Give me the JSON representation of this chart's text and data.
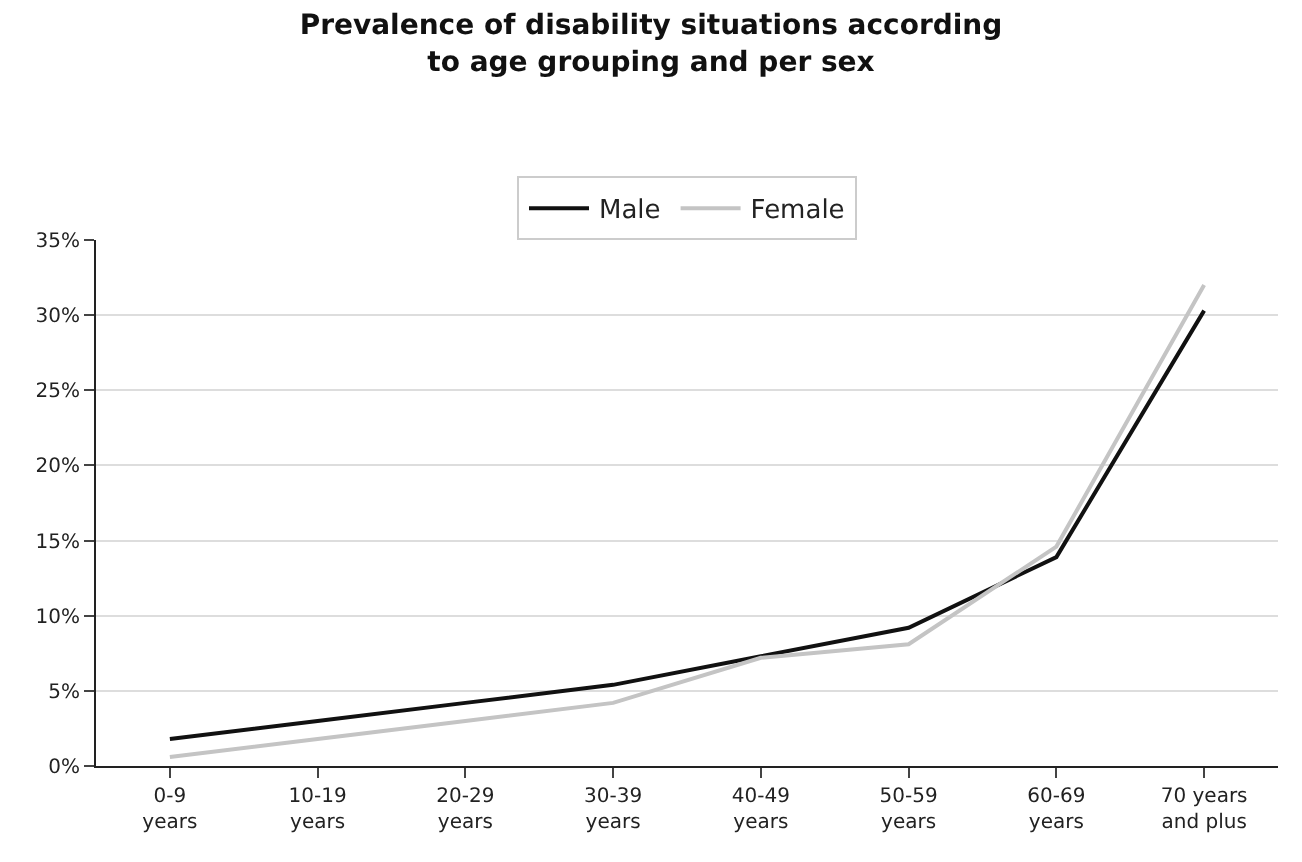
{
  "chart_data": {
    "type": "line",
    "title": "Prevalence of disability situations according\nto age grouping and per sex",
    "categories": [
      "0-9\nyears",
      "10-19\nyears",
      "20-29\nyears",
      "30-39\nyears",
      "40-49\nyears",
      "50-59\nyears",
      "60-69\nyears",
      "70 years\nand plus"
    ],
    "series": [
      {
        "name": "Male",
        "color": "#111111",
        "values": [
          1.8,
          3.0,
          4.2,
          5.4,
          7.3,
          9.2,
          13.9,
          30.3
        ]
      },
      {
        "name": "Female",
        "color": "#c4c4c4",
        "values": [
          0.6,
          1.8,
          3.0,
          4.2,
          7.2,
          8.1,
          14.6,
          32.0
        ]
      }
    ],
    "ylim": [
      0,
      35
    ],
    "yticks": [
      {
        "value": 0,
        "label": "0%"
      },
      {
        "value": 5,
        "label": "5%"
      },
      {
        "value": 10,
        "label": "10%"
      },
      {
        "value": 15,
        "label": "15%"
      },
      {
        "value": 20,
        "label": "20%"
      },
      {
        "value": 25,
        "label": "25%"
      },
      {
        "value": 30,
        "label": "30%"
      },
      {
        "value": 35,
        "label": "35%"
      }
    ],
    "grid": "y",
    "legend": "top",
    "marker": "none",
    "line_style": "solid"
  }
}
